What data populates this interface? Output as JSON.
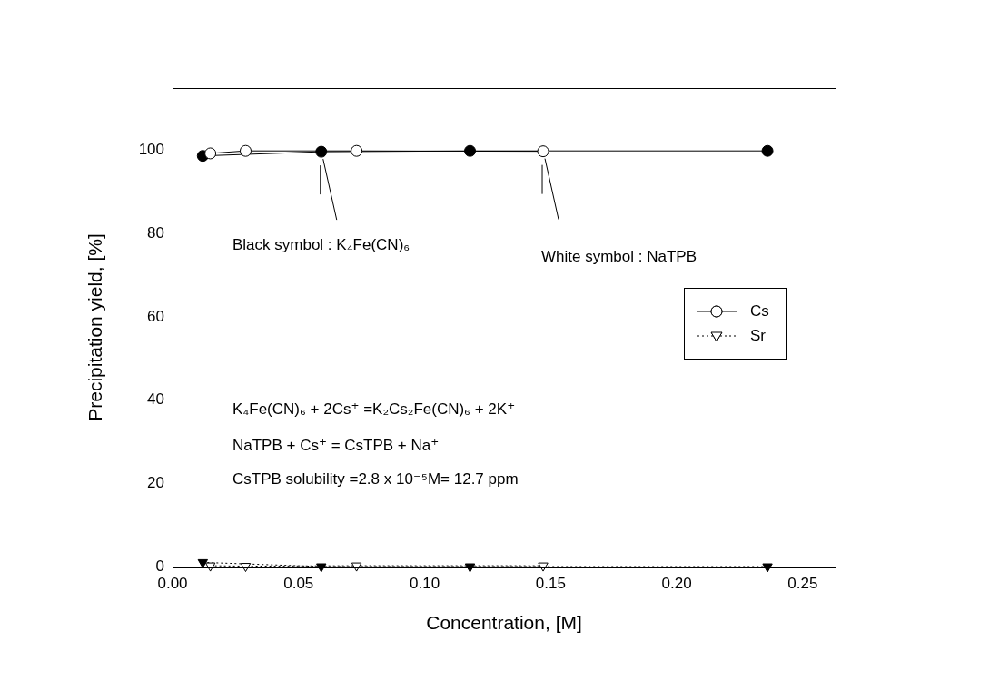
{
  "chart_data": {
    "type": "scatter",
    "x_label": "Concentration, [M]",
    "y_label": "Precipitation yield, [%]",
    "xlim": [
      0,
      0.263
    ],
    "xticks": [
      {
        "value": 0,
        "label": "0.00"
      },
      {
        "value": 0.05,
        "label": "0.05"
      },
      {
        "value": 0.1,
        "label": "0.10"
      },
      {
        "value": 0.15,
        "label": "0.15"
      },
      {
        "value": 0.2,
        "label": "0.20"
      },
      {
        "value": 0.25,
        "label": "0.25"
      }
    ],
    "ylim": [
      0,
      115
    ],
    "yticks": [
      0,
      20,
      40,
      60,
      80,
      100
    ],
    "grid": false,
    "legend": "right",
    "series": [
      {
        "name": "Cs",
        "color": "#000000",
        "marker": "open_circle",
        "line_style": "solid",
        "x": [
          0.015,
          0.029,
          0.073,
          0.147
        ],
        "values": [
          99.3,
          99.9,
          99.9,
          99.8
        ]
      },
      {
        "name": "Cs",
        "color": "#000000",
        "marker": "filled_circle",
        "line_style": "solid",
        "x": [
          0.012,
          0.059,
          0.118,
          0.236
        ],
        "values": [
          98.7,
          99.7,
          99.9,
          99.9
        ]
      },
      {
        "name": "Sr",
        "color": "#000000",
        "marker": "open_triangle",
        "line_style": "dotted",
        "x": [
          0.015,
          0.029,
          0.073,
          0.147
        ],
        "values": [
          0.2,
          0.1,
          0.2,
          0.2
        ]
      },
      {
        "name": "Sr",
        "color": "#000000",
        "marker": "filled_triangle",
        "line_style": "dotted",
        "x": [
          0.012,
          0.059,
          0.118,
          0.236
        ],
        "values": [
          1.0,
          0.0,
          0.0,
          0.0
        ]
      }
    ],
    "annotations": [
      "Black symbol : K₄Fe(CN)₆",
      "White symbol : NaTPB",
      "K₄Fe(CN)₆ + 2Cs⁺ =K₂Cs₂Fe(CN)₆ + 2K⁺",
      "NaTPB + Cs⁺ = CsTPB + Na⁺",
      "CsTPB solubility =2.8 x 10⁻⁵M= 12.7 ppm"
    ]
  }
}
